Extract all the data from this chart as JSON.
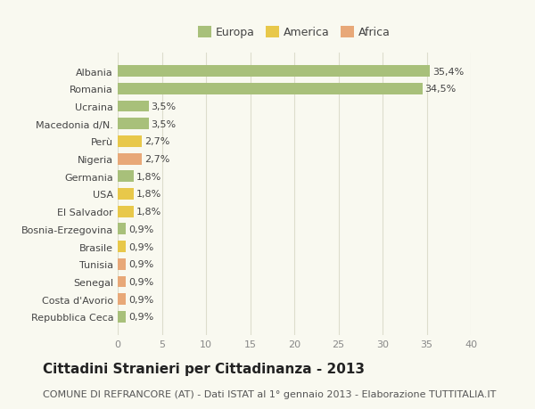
{
  "countries": [
    "Albania",
    "Romania",
    "Ucraina",
    "Macedonia d/N.",
    "Perù",
    "Nigeria",
    "Germania",
    "USA",
    "El Salvador",
    "Bosnia-Erzegovina",
    "Brasile",
    "Tunisia",
    "Senegal",
    "Costa d'Avorio",
    "Repubblica Ceca"
  ],
  "values": [
    35.4,
    34.5,
    3.5,
    3.5,
    2.7,
    2.7,
    1.8,
    1.8,
    1.8,
    0.9,
    0.9,
    0.9,
    0.9,
    0.9,
    0.9
  ],
  "labels": [
    "35,4%",
    "34,5%",
    "3,5%",
    "3,5%",
    "2,7%",
    "2,7%",
    "1,8%",
    "1,8%",
    "1,8%",
    "0,9%",
    "0,9%",
    "0,9%",
    "0,9%",
    "0,9%",
    "0,9%"
  ],
  "continent": [
    "Europa",
    "Europa",
    "Europa",
    "Europa",
    "America",
    "Africa",
    "Europa",
    "America",
    "America",
    "Europa",
    "America",
    "Africa",
    "Africa",
    "Africa",
    "Europa"
  ],
  "colors": {
    "Europa": "#a8c07a",
    "America": "#e8c84a",
    "Africa": "#e8a878"
  },
  "legend_colors": {
    "Europa": "#a8c07a",
    "America": "#e8c84a",
    "Africa": "#e8a878"
  },
  "title": "Cittadini Stranieri per Cittadinanza - 2013",
  "subtitle": "COMUNE DI REFRANCORE (AT) - Dati ISTAT al 1° gennaio 2013 - Elaborazione TUTTITALIA.IT",
  "xlim": [
    0,
    40
  ],
  "xticks": [
    0,
    5,
    10,
    15,
    20,
    25,
    30,
    35,
    40
  ],
  "background_color": "#f9f9f0",
  "grid_color": "#ddddcc",
  "bar_height": 0.65,
  "title_fontsize": 11,
  "subtitle_fontsize": 8,
  "label_fontsize": 8,
  "tick_fontsize": 8
}
